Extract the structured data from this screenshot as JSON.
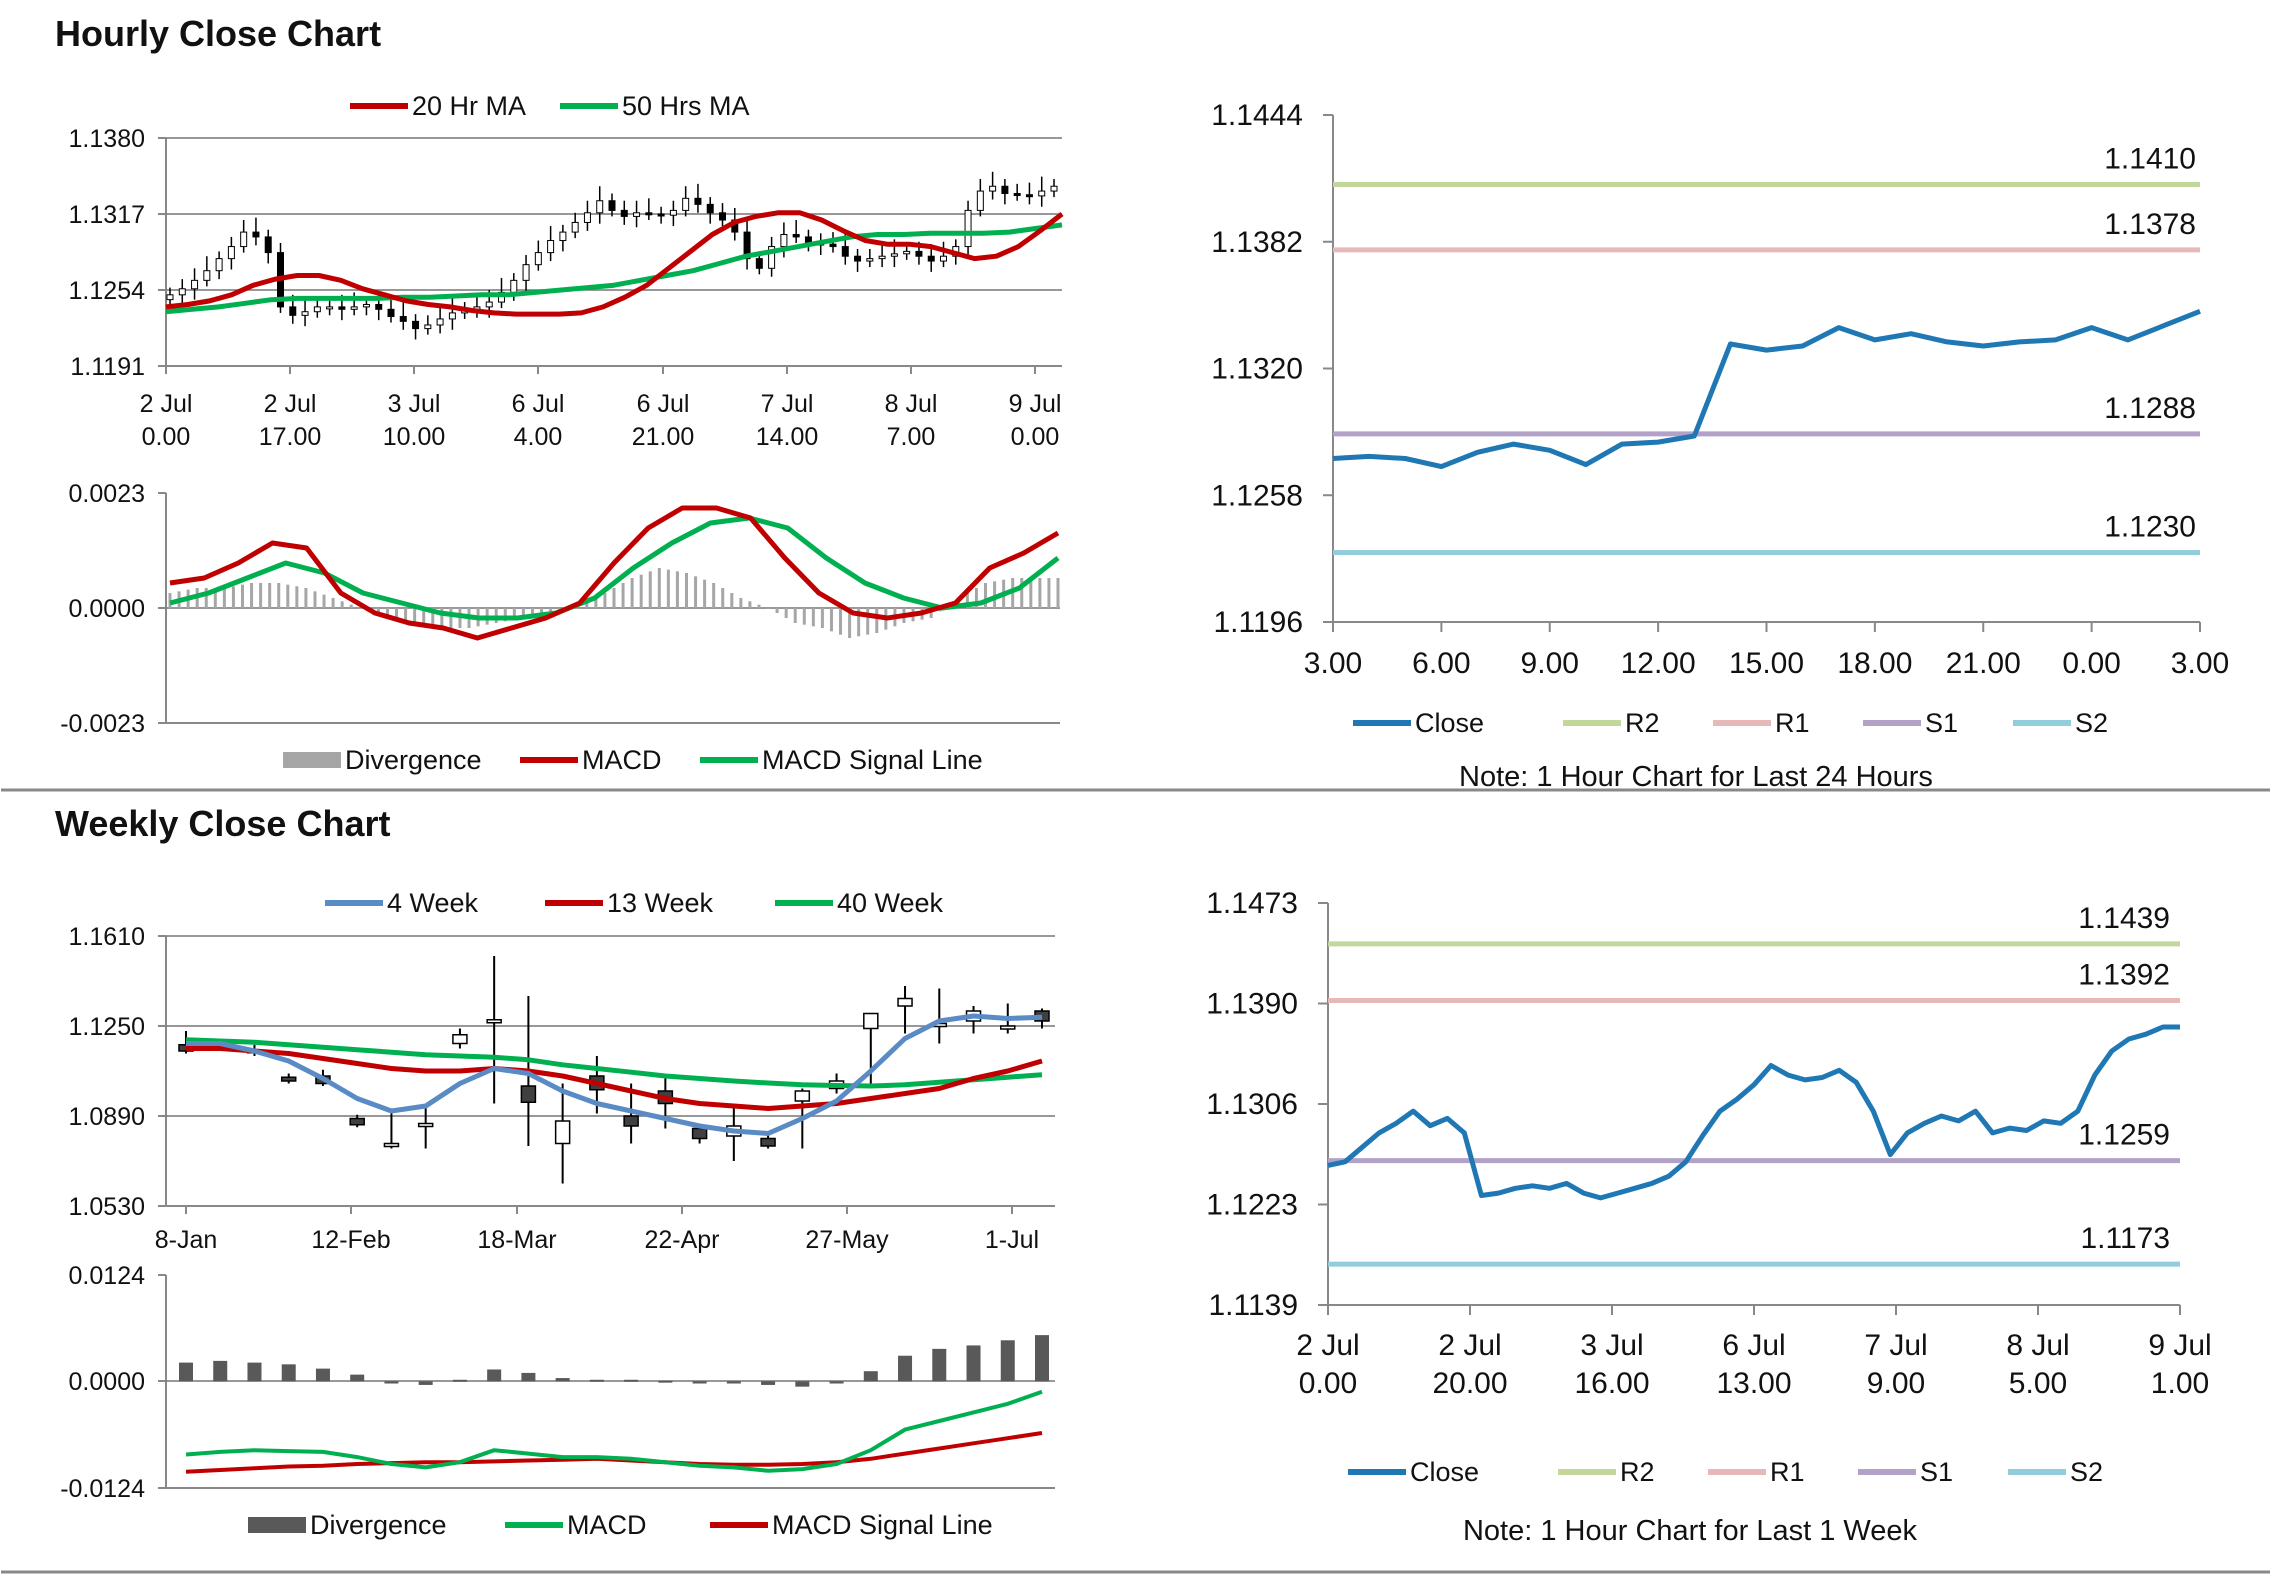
{
  "sections": {
    "hourly_title": "Hourly Close Chart",
    "weekly_title": "Weekly Close Chart"
  },
  "colors": {
    "ma_red": "#c00000",
    "ma_green": "#00b050",
    "ma_blue": "#5b8bc5",
    "close_blue": "#1f77b4",
    "r2": "#c3d69b",
    "r1": "#e6b9b8",
    "s1": "#b3a2c7",
    "s2": "#92cddc",
    "divergence_light": "#a6a6a6",
    "divergence_dark": "#595959",
    "axis": "#888888"
  },
  "chart_data": [
    {
      "id": "hourly_price",
      "type": "candlestick",
      "legend": [
        "20 Hr MA",
        "50 Hrs MA"
      ],
      "y_ticks": [
        "1.1380",
        "1.1317",
        "1.1254",
        "1.1191"
      ],
      "ylim": [
        1.1191,
        1.138
      ],
      "x_ticks": [
        [
          "2 Jul",
          "0.00"
        ],
        [
          "2 Jul",
          "17.00"
        ],
        [
          "3 Jul",
          "10.00"
        ],
        [
          "6 Jul",
          "4.00"
        ],
        [
          "6 Jul",
          "21.00"
        ],
        [
          "7 Jul",
          "14.00"
        ],
        [
          "8 Jul",
          "7.00"
        ],
        [
          "9 Jul",
          "0.00"
        ]
      ],
      "close": [
        1.125,
        1.1255,
        1.1262,
        1.127,
        1.128,
        1.129,
        1.1302,
        1.1298,
        1.1285,
        1.124,
        1.1233,
        1.1236,
        1.124,
        1.124,
        1.1238,
        1.124,
        1.1242,
        1.1238,
        1.1232,
        1.1228,
        1.1222,
        1.1225,
        1.123,
        1.1235,
        1.1238,
        1.124,
        1.1244,
        1.1252,
        1.1262,
        1.1275,
        1.1285,
        1.1295,
        1.1302,
        1.131,
        1.1318,
        1.1328,
        1.132,
        1.1315,
        1.1318,
        1.1317,
        1.1316,
        1.132,
        1.133,
        1.1325,
        1.1318,
        1.1312,
        1.1302,
        1.128,
        1.1272,
        1.129,
        1.13,
        1.1298,
        1.1293,
        1.1292,
        1.129,
        1.1282,
        1.1278,
        1.128,
        1.1282,
        1.1284,
        1.1286,
        1.1282,
        1.1278,
        1.1282,
        1.129,
        1.132,
        1.1336,
        1.134,
        1.1334,
        1.1333,
        1.1332,
        1.1336,
        1.134
      ],
      "ma20": [
        1.124,
        1.1242,
        1.1245,
        1.125,
        1.1258,
        1.1263,
        1.1266,
        1.1266,
        1.1262,
        1.1255,
        1.125,
        1.1245,
        1.1242,
        1.124,
        1.1237,
        1.1235,
        1.1234,
        1.1234,
        1.1234,
        1.1235,
        1.124,
        1.1248,
        1.1258,
        1.1272,
        1.1286,
        1.13,
        1.131,
        1.1315,
        1.1318,
        1.1318,
        1.1312,
        1.1303,
        1.1295,
        1.1292,
        1.1292,
        1.129,
        1.1285,
        1.128,
        1.1282,
        1.129,
        1.1303,
        1.1317
      ],
      "ma50": [
        1.1236,
        1.1238,
        1.124,
        1.1243,
        1.1246,
        1.1247,
        1.1247,
        1.1247,
        1.1247,
        1.1248,
        1.1248,
        1.1249,
        1.125,
        1.125,
        1.1252,
        1.1254,
        1.1256,
        1.1258,
        1.1262,
        1.1266,
        1.127,
        1.1276,
        1.1282,
        1.1286,
        1.129,
        1.1294,
        1.1298,
        1.13,
        1.13,
        1.1301,
        1.1301,
        1.1301,
        1.1302,
        1.1305,
        1.1308
      ]
    },
    {
      "id": "hourly_macd",
      "type": "macd",
      "legend": [
        "Divergence",
        "MACD",
        "MACD Signal Line"
      ],
      "y_ticks": [
        "0.0023",
        "0.0000",
        "-0.0023"
      ],
      "ylim": [
        -0.0023,
        0.0023
      ],
      "macd": [
        0.0005,
        0.0006,
        0.0009,
        0.0013,
        0.0012,
        0.0003,
        -0.0001,
        -0.0003,
        -0.0004,
        -0.0006,
        -0.0004,
        -0.0002,
        0.0001,
        0.0009,
        0.0016,
        0.002,
        0.002,
        0.0018,
        0.001,
        0.0003,
        -0.0001,
        -0.0002,
        -0.0001,
        0.0001,
        0.0008,
        0.0011,
        0.0015
      ],
      "signal": [
        0.0001,
        0.0003,
        0.0006,
        0.0009,
        0.0007,
        0.0003,
        0.0001,
        -0.0001,
        -0.0002,
        -0.0002,
        -0.0001,
        0.0002,
        0.0008,
        0.0013,
        0.0017,
        0.0018,
        0.0016,
        0.001,
        0.0005,
        0.0002,
        0.0,
        0.0001,
        0.0004,
        0.001
      ],
      "divergence": [
        0.0003,
        0.0004,
        0.0004,
        0.0005,
        0.0005,
        0.0004,
        0.0002,
        0.0,
        -0.0002,
        -0.0003,
        -0.0004,
        -0.0004,
        -0.0003,
        -0.0002,
        -0.0001,
        0.0,
        0.0003,
        0.0006,
        0.0008,
        0.0007,
        0.0005,
        0.0002,
        0.0,
        -0.0003,
        -0.0004,
        -0.0006,
        -0.0005,
        -0.0003,
        -0.0002,
        0.0002,
        0.0005,
        0.0006,
        0.0006
      ]
    },
    {
      "id": "hourly_24h",
      "type": "line",
      "legend": [
        "Close",
        "R2",
        "R1",
        "S1",
        "S2"
      ],
      "y_ticks": [
        "1.1444",
        "1.1382",
        "1.1320",
        "1.1258",
        "1.1196"
      ],
      "ylim": [
        1.1196,
        1.1444
      ],
      "x_ticks": [
        "3.00",
        "6.00",
        "9.00",
        "12.00",
        "15.00",
        "18.00",
        "21.00",
        "0.00",
        "3.00"
      ],
      "x": [
        3,
        4,
        5,
        6,
        7,
        8,
        9,
        10,
        11,
        12,
        13,
        14,
        15,
        16,
        17,
        18,
        19,
        20,
        21,
        22,
        23,
        24,
        25,
        26,
        27
      ],
      "close": [
        1.1276,
        1.1277,
        1.1276,
        1.1272,
        1.1279,
        1.1283,
        1.128,
        1.1273,
        1.1283,
        1.1284,
        1.1287,
        1.1332,
        1.1329,
        1.1331,
        1.134,
        1.1334,
        1.1337,
        1.1333,
        1.1331,
        1.1333,
        1.1334,
        1.134,
        1.1334,
        1.1341,
        1.1348
      ],
      "levels": {
        "R2": "1.1410",
        "R1": "1.1378",
        "S1": "1.1288",
        "S2": "1.1230"
      },
      "note": "Note: 1 Hour Chart for Last 24 Hours"
    },
    {
      "id": "weekly_price",
      "type": "candlestick",
      "legend": [
        "4 Week",
        "13 Week",
        "40 Week"
      ],
      "y_ticks": [
        "1.1610",
        "1.1250",
        "1.0890",
        "1.0530"
      ],
      "ylim": [
        1.053,
        1.161
      ],
      "x_ticks": [
        "8-Jan",
        "12-Feb",
        "18-Mar",
        "22-Apr",
        "27-May",
        "1-Jul"
      ],
      "candles": [
        [
          1.1175,
          1.115,
          1.123,
          1.114
        ],
        [
          1.117,
          1.1165,
          1.119,
          1.115
        ],
        [
          1.1155,
          1.1145,
          1.1175,
          1.113
        ],
        [
          1.1045,
          1.103,
          1.106,
          1.102
        ],
        [
          1.105,
          1.102,
          1.1075,
          1.101
        ],
        [
          1.088,
          1.0855,
          1.0895,
          1.0845
        ],
        [
          1.077,
          1.078,
          1.09,
          1.076
        ],
        [
          1.085,
          1.086,
          1.093,
          1.076
        ],
        [
          1.118,
          1.1215,
          1.124,
          1.116
        ],
        [
          1.127,
          1.1275,
          1.153,
          1.094
        ],
        [
          1.101,
          1.0945,
          1.137,
          1.077
        ],
        [
          1.078,
          1.087,
          1.102,
          1.062
        ],
        [
          1.105,
          1.0995,
          1.113,
          1.09
        ],
        [
          1.089,
          1.085,
          1.102,
          1.078
        ],
        [
          1.099,
          1.094,
          1.104,
          1.084
        ],
        [
          1.084,
          1.08,
          1.086,
          1.078
        ],
        [
          1.081,
          1.085,
          1.094,
          1.071
        ],
        [
          1.08,
          1.077,
          1.082,
          1.076
        ],
        [
          1.095,
          1.099,
          1.1,
          1.076
        ],
        [
          1.1,
          1.103,
          1.106,
          1.098
        ],
        [
          1.124,
          1.13,
          1.13,
          1.101
        ],
        [
          1.133,
          1.136,
          1.141,
          1.122
        ],
        [
          1.126,
          1.126,
          1.14,
          1.118
        ],
        [
          1.127,
          1.131,
          1.133,
          1.122
        ],
        [
          1.125,
          1.125,
          1.134,
          1.122
        ],
        [
          1.131,
          1.127,
          1.132,
          1.124
        ]
      ],
      "w4": [
        1.118,
        1.118,
        1.115,
        1.111,
        1.104,
        1.096,
        1.091,
        1.093,
        1.102,
        1.108,
        1.106,
        1.099,
        1.094,
        1.091,
        1.088,
        1.085,
        1.083,
        1.082,
        1.088,
        1.095,
        1.107,
        1.12,
        1.127,
        1.129,
        1.128,
        1.1285
      ],
      "w13": [
        1.116,
        1.116,
        1.115,
        1.114,
        1.112,
        1.11,
        1.108,
        1.107,
        1.107,
        1.108,
        1.107,
        1.105,
        1.102,
        1.099,
        1.096,
        1.094,
        1.093,
        1.092,
        1.093,
        1.094,
        1.096,
        1.098,
        1.1,
        1.104,
        1.107,
        1.111
      ],
      "w40": [
        1.1195,
        1.119,
        1.1185,
        1.1175,
        1.1165,
        1.1155,
        1.1145,
        1.1135,
        1.113,
        1.1125,
        1.1115,
        1.1095,
        1.108,
        1.1065,
        1.105,
        1.104,
        1.103,
        1.1022,
        1.1015,
        1.1012,
        1.101,
        1.1015,
        1.1025,
        1.1035,
        1.1045,
        1.1055
      ]
    },
    {
      "id": "weekly_macd",
      "type": "macd",
      "legend": [
        "Divergence",
        "MACD",
        "MACD Signal Line"
      ],
      "y_ticks": [
        "0.0124",
        "0.0000",
        "-0.0124"
      ],
      "ylim": [
        -0.0124,
        0.0124
      ],
      "macd": [
        -0.0085,
        -0.0082,
        -0.008,
        -0.0081,
        -0.0082,
        -0.0088,
        -0.0096,
        -0.01,
        -0.0094,
        -0.008,
        -0.0084,
        -0.0088,
        -0.0088,
        -0.009,
        -0.0094,
        -0.0098,
        -0.01,
        -0.0104,
        -0.0102,
        -0.0096,
        -0.008,
        -0.0056,
        -0.0046,
        -0.0036,
        -0.0026,
        -0.0012
      ],
      "signal": [
        -0.0105,
        -0.0103,
        -0.0101,
        -0.0099,
        -0.0098,
        -0.0096,
        -0.0095,
        -0.0094,
        -0.0094,
        -0.0093,
        -0.0092,
        -0.0091,
        -0.009,
        -0.0092,
        -0.0094,
        -0.0096,
        -0.0097,
        -0.0097,
        -0.0096,
        -0.0094,
        -0.009,
        -0.0084,
        -0.0078,
        -0.0072,
        -0.0066,
        -0.006
      ],
      "divergence": [
        0.0022,
        0.0024,
        0.0022,
        0.002,
        0.0015,
        0.0008,
        -0.0002,
        -0.0004,
        0.0002,
        0.0014,
        0.001,
        0.0004,
        0.0002,
        0.0002,
        0.0001,
        -0.0001,
        -0.0002,
        -0.0004,
        -0.0006,
        -0.0002,
        0.0012,
        0.003,
        0.0038,
        0.0042,
        0.0048,
        0.0054
      ]
    },
    {
      "id": "weekly_1w",
      "type": "line",
      "legend": [
        "Close",
        "R2",
        "R1",
        "S1",
        "S2"
      ],
      "y_ticks": [
        "1.1473",
        "1.1390",
        "1.1306",
        "1.1223",
        "1.1139"
      ],
      "ylim": [
        1.1139,
        1.1473
      ],
      "x_ticks": [
        [
          "2 Jul",
          "0.00"
        ],
        [
          "2 Jul",
          "20.00"
        ],
        [
          "3 Jul",
          "16.00"
        ],
        [
          "6 Jul",
          "13.00"
        ],
        [
          "7 Jul",
          "9.00"
        ],
        [
          "8 Jul",
          "5.00"
        ],
        [
          "9 Jul",
          "1.00"
        ]
      ],
      "close": [
        1.1255,
        1.1258,
        1.127,
        1.1282,
        1.129,
        1.13,
        1.1288,
        1.1294,
        1.1282,
        1.123,
        1.1232,
        1.1236,
        1.1238,
        1.1236,
        1.124,
        1.1232,
        1.1228,
        1.1232,
        1.1236,
        1.124,
        1.1246,
        1.1258,
        1.128,
        1.13,
        1.131,
        1.1322,
        1.1338,
        1.133,
        1.1326,
        1.1328,
        1.1334,
        1.1324,
        1.13,
        1.1264,
        1.1282,
        1.129,
        1.1296,
        1.1292,
        1.13,
        1.1282,
        1.1286,
        1.1284,
        1.1292,
        1.129,
        1.13,
        1.133,
        1.135,
        1.136,
        1.1364,
        1.137,
        1.137
      ],
      "levels": {
        "R2": "1.1439",
        "R1": "1.1392",
        "S1": "1.1259",
        "S2": "1.1173"
      },
      "note": "Note: 1 Hour Chart for Last 1 Week"
    }
  ]
}
